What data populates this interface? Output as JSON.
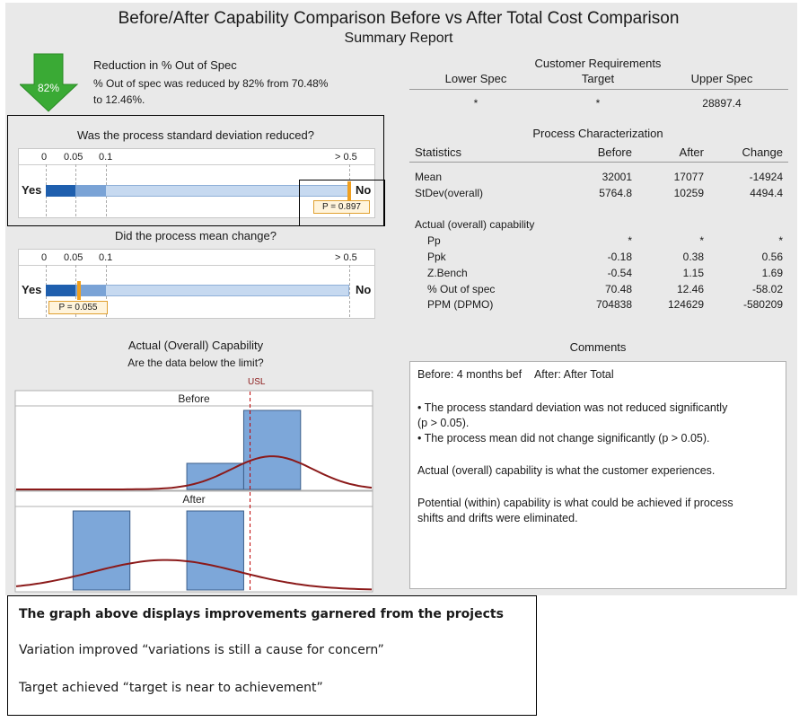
{
  "report": {
    "title": "Before/After Capability Comparison Before vs After Total Cost Comparison",
    "subtitle": "Summary Report"
  },
  "reduction": {
    "badge": "82%",
    "heading": "Reduction in % Out of Spec",
    "line1": "% Out of spec was reduced by 82% from 70.48%",
    "line2": "to 12.46%.",
    "arrow_color": "#3aaa35"
  },
  "std_test": {
    "question": "Was the process standard deviation reduced?",
    "ticks": [
      "0",
      "0.05",
      "0.1",
      "> 0.5"
    ],
    "yes_label": "Yes",
    "no_label": "No",
    "p_label": "P = 0.897",
    "p_value": 0.897
  },
  "mean_test": {
    "question": "Did the process mean change?",
    "ticks": [
      "0",
      "0.05",
      "0.1",
      "> 0.5"
    ],
    "yes_label": "Yes",
    "no_label": "No",
    "p_label": "P = 0.055",
    "p_value": 0.055
  },
  "requirements": {
    "heading": "Customer Requirements",
    "cols": [
      "Lower Spec",
      "Target",
      "Upper Spec"
    ],
    "values": [
      "*",
      "*",
      "28897.4"
    ]
  },
  "process": {
    "heading": "Process Characterization",
    "cols": [
      "Statistics",
      "Before",
      "After",
      "Change"
    ],
    "rows": [
      {
        "label": "Mean",
        "before": "32001",
        "after": "17077",
        "change": "-14924"
      },
      {
        "label": "StDev(overall)",
        "before": "5764.8",
        "after": "10259",
        "change": "4494.4"
      }
    ],
    "capability_heading": "Actual (overall) capability",
    "cap_rows": [
      {
        "label": "Pp",
        "before": "*",
        "after": "*",
        "change": "*"
      },
      {
        "label": "Ppk",
        "before": "-0.18",
        "after": "0.38",
        "change": "0.56"
      },
      {
        "label": "Z.Bench",
        "before": "-0.54",
        "after": "1.15",
        "change": "1.69"
      },
      {
        "label": "% Out of spec",
        "before": "70.48",
        "after": "12.46",
        "change": "-58.02"
      },
      {
        "label": "PPM (DPMO)",
        "before": "704838",
        "after": "124629",
        "change": "-580209"
      }
    ]
  },
  "capability_chart": {
    "heading": "Actual (Overall) Capability",
    "subheading": "Are the data below the limit?",
    "usl_label": "USL",
    "panels": [
      "Before",
      "After"
    ]
  },
  "comments": {
    "heading": "Comments",
    "before_label": "Before: 4 months bef",
    "after_label": "After: After Total",
    "bullet1a": "• The process standard deviation was not reduced significantly",
    "bullet1b": "(p > 0.05).",
    "bullet2": "• The process mean did not change significantly (p > 0.05).",
    "para1": "Actual (overall) capability is what the customer experiences.",
    "para2a": "Potential (within) capability is what could be achieved if process",
    "para2b": "shifts and drifts were eliminated."
  },
  "note": {
    "heading": "The graph above displays improvements garnered from the projects",
    "line1": "Variation improved “variations is still a cause for concern”",
    "line2": "Target achieved “target is near to achievement”"
  },
  "chart_data": {
    "type": "bar",
    "usl": 28897.4,
    "series": [
      {
        "name": "Before",
        "bins": [
          {
            "x": 24000,
            "relative_height": 0.33
          },
          {
            "x": 32000,
            "relative_height": 1.0
          }
        ],
        "mean": 32001,
        "stdev": 5764.8
      },
      {
        "name": "After",
        "bins": [
          {
            "x": 8000,
            "relative_height": 1.0
          },
          {
            "x": 24000,
            "relative_height": 1.0
          }
        ],
        "mean": 17077,
        "stdev": 10259
      }
    ],
    "colors": {
      "bar": "#7da7d9",
      "curve": "#8b1a1a",
      "usl": "#c00000"
    }
  }
}
